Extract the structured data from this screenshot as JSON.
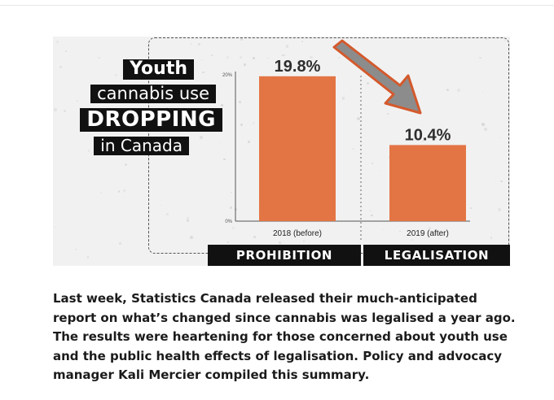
{
  "headline": {
    "line1": "Youth",
    "line2": "cannabis use",
    "line3": "DROPPING",
    "line4": "in Canada"
  },
  "chart_data": {
    "type": "bar",
    "categories": [
      "2018 (before)",
      "2019 (after)"
    ],
    "values": [
      19.8,
      10.4
    ],
    "value_labels": [
      "19.8%",
      "10.4%"
    ],
    "yticks": [
      "0%",
      "20%"
    ],
    "ylim": [
      0,
      20
    ],
    "group_labels": [
      "PROHIBITION",
      "LEGALISATION"
    ],
    "bar_color": "#e37545",
    "arrow_color": "#8c8c8c",
    "arrow_outline": "#d4592c"
  },
  "article": {
    "text": "Last week, Statistics Canada released their much-anticipated report on what’s changed since cannabis was legalised a year ago. The results were heartening for those concerned about youth use and the public health effects of legalisation. Policy and advocacy manager Kali Mercier compiled this summary."
  }
}
